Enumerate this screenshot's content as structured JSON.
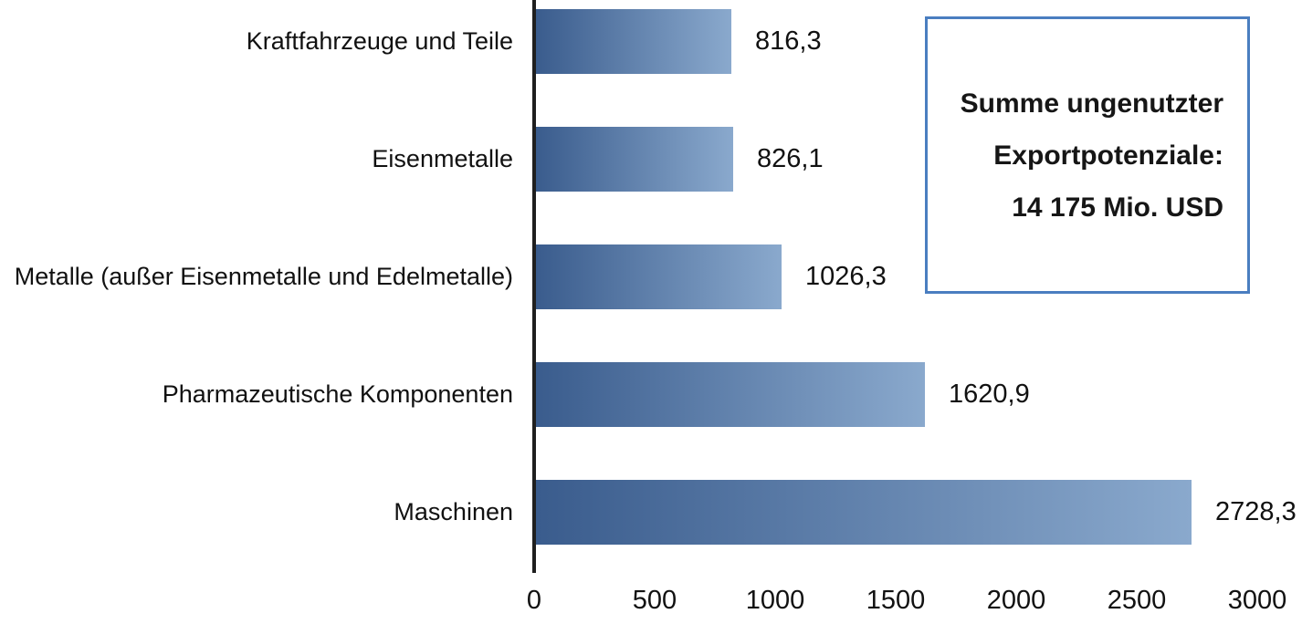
{
  "chart_data": {
    "type": "bar",
    "orientation": "horizontal",
    "title": "",
    "xlabel": "",
    "ylabel": "",
    "categories": [
      "Kraftfahrzeuge und Teile",
      "Eisenmetalle",
      "Metalle (außer Eisenmetalle und Edelmetalle)",
      "Pharmazeutische Komponenten",
      "Maschinen"
    ],
    "values": [
      816.3,
      826.1,
      1026.3,
      1620.9,
      2728.3
    ],
    "value_labels": [
      "816,3",
      "826,1",
      "1026,3",
      "1620,9",
      "2728,3"
    ],
    "xlim": [
      0,
      3000
    ],
    "x_ticks": [
      0,
      500,
      1000,
      1500,
      2000,
      2500,
      3000
    ],
    "x_tick_labels": [
      "0",
      "500",
      "1000",
      "1500",
      "2000",
      "2500",
      "3000"
    ],
    "grid": false,
    "legend": "none",
    "annotation": {
      "lines": [
        "Summe ungenutzter",
        "Exportpotenziale:",
        "14 175 Mio. USD"
      ]
    },
    "colors": {
      "bar_gradient_start": "#3a5c8d",
      "bar_gradient_end": "#8aa9cd",
      "annotation_border": "#4a7ec0",
      "axis_line": "#1f1f1f",
      "text": "#111111"
    }
  }
}
